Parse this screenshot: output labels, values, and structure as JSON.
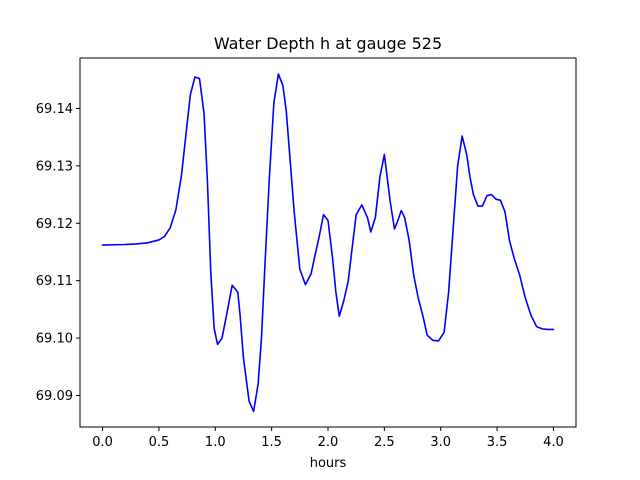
{
  "chart_data": {
    "type": "line",
    "title": "Water Depth h at gauge 525",
    "xlabel": "hours",
    "ylabel": "",
    "xlim": [
      -0.2,
      4.2
    ],
    "ylim": [
      69.0845,
      69.1488
    ],
    "xticks": [
      0.0,
      0.5,
      1.0,
      1.5,
      2.0,
      2.5,
      3.0,
      3.5,
      4.0
    ],
    "xtick_labels": [
      "0.0",
      "0.5",
      "1.0",
      "1.5",
      "2.0",
      "2.5",
      "3.0",
      "3.5",
      "4.0"
    ],
    "yticks": [
      69.09,
      69.1,
      69.11,
      69.12,
      69.13,
      69.14
    ],
    "ytick_labels": [
      "69.09",
      "69.10",
      "69.11",
      "69.12",
      "69.13",
      "69.14"
    ],
    "grid": false,
    "color": "#0000ff",
    "series": [
      {
        "x": [
          0.0,
          0.2,
          0.3,
          0.4,
          0.5,
          0.55,
          0.6,
          0.65,
          0.7,
          0.75,
          0.78,
          0.82,
          0.86,
          0.9,
          0.93,
          0.96,
          0.99,
          1.02,
          1.06,
          1.1,
          1.15,
          1.2,
          1.22,
          1.25,
          1.3,
          1.34,
          1.38,
          1.41,
          1.44,
          1.48,
          1.52,
          1.56,
          1.6,
          1.63,
          1.66,
          1.7,
          1.75,
          1.8,
          1.85,
          1.88,
          1.92,
          1.96,
          2.0,
          2.04,
          2.07,
          2.1,
          2.14,
          2.18,
          2.21,
          2.25,
          2.3,
          2.35,
          2.38,
          2.42,
          2.46,
          2.5,
          2.55,
          2.59,
          2.62,
          2.65,
          2.68,
          2.72,
          2.76,
          2.8,
          2.84,
          2.88,
          2.93,
          2.98,
          3.03,
          3.07,
          3.11,
          3.15,
          3.19,
          3.23,
          3.26,
          3.29,
          3.33,
          3.37,
          3.41,
          3.45,
          3.49,
          3.53,
          3.57,
          3.61,
          3.65,
          3.7,
          3.75,
          3.8,
          3.85,
          3.9,
          3.95,
          4.0
        ],
        "y": [
          69.1162,
          69.1163,
          69.1164,
          69.1166,
          69.1171,
          69.1177,
          69.1192,
          69.1223,
          69.1283,
          69.1373,
          69.1425,
          69.1455,
          69.1452,
          69.1392,
          69.1275,
          69.1115,
          69.1017,
          69.0989,
          69.1,
          69.104,
          69.1092,
          69.108,
          69.104,
          69.0965,
          69.089,
          69.0872,
          69.092,
          69.1,
          69.1125,
          69.128,
          69.141,
          69.146,
          69.144,
          69.1395,
          69.132,
          69.122,
          69.112,
          69.1093,
          69.1112,
          69.114,
          69.1175,
          69.1215,
          69.1205,
          69.114,
          69.108,
          69.1038,
          69.1065,
          69.11,
          69.115,
          69.1215,
          69.1232,
          69.121,
          69.1185,
          69.121,
          69.128,
          69.132,
          69.124,
          69.119,
          69.1205,
          69.1222,
          69.121,
          69.117,
          69.111,
          69.107,
          69.104,
          69.1005,
          69.0996,
          69.0995,
          69.101,
          69.108,
          69.119,
          69.13,
          69.1352,
          69.132,
          69.128,
          69.125,
          69.123,
          69.123,
          69.1248,
          69.125,
          69.1242,
          69.124,
          69.122,
          69.117,
          69.114,
          69.111,
          69.107,
          69.104,
          69.102,
          69.1016,
          69.1015,
          69.1015
        ]
      }
    ]
  }
}
